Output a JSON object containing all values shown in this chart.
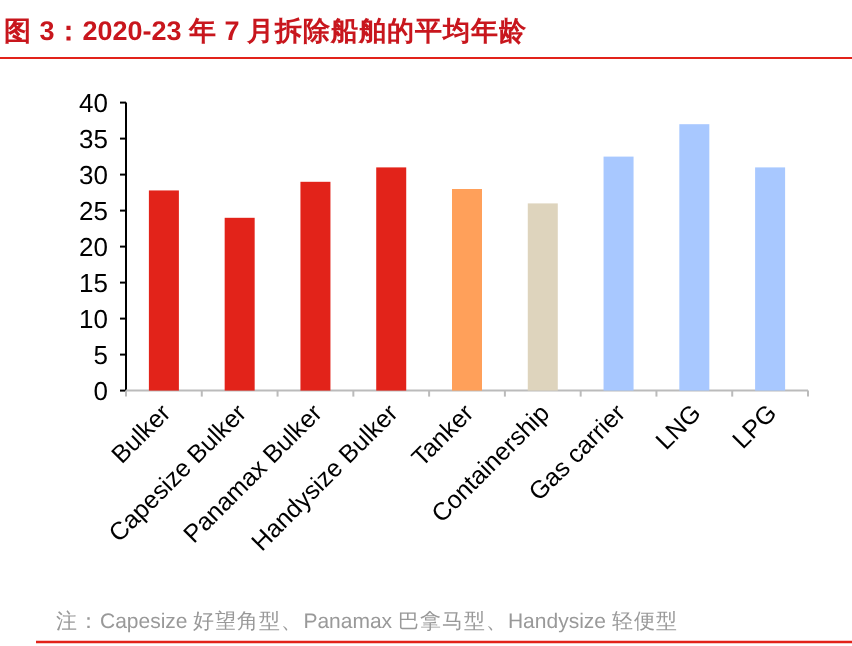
{
  "chart_data": {
    "type": "bar",
    "title": "图 3：2020-23 年 7 月拆除船舶的平均年龄",
    "categories": [
      "Bulker",
      "Capesize Bulker",
      "Panamax Bulker",
      "Handysize Bulker",
      "Tanker",
      "Containership",
      "Gas carrier",
      "LNG",
      "LPG"
    ],
    "values": [
      27.8,
      24,
      29,
      31,
      28,
      26,
      32.5,
      37,
      31
    ],
    "colors": [
      "#e2231a",
      "#e2231a",
      "#e2231a",
      "#e2231a",
      "#ffa05a",
      "#ded4bd",
      "#a8c8ff",
      "#a8c8ff",
      "#a8c8ff"
    ],
    "ylim": [
      0,
      40
    ],
    "yticks": [
      0,
      5,
      10,
      15,
      20,
      25,
      30,
      35,
      40
    ],
    "annotations": [
      "注：Capesize 好望角型、Panamax 巴拿马型、Handysize 轻便型"
    ]
  }
}
